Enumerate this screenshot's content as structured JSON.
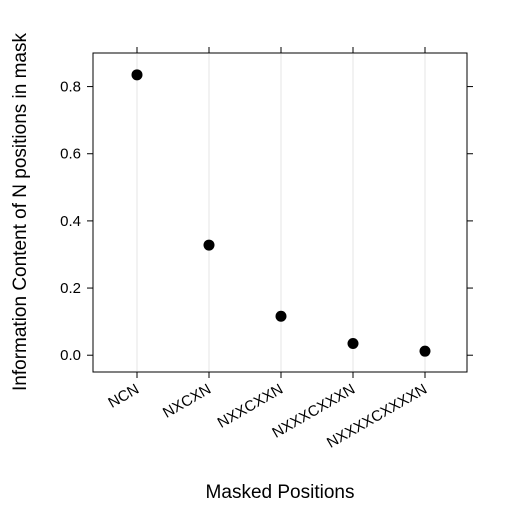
{
  "chart_data": {
    "type": "scatter",
    "title": "",
    "xlabel": "Masked Positions",
    "ylabel": "Information Content of N positions in mask",
    "categories": [
      "NCN",
      "NXCXN",
      "NXXCXXN",
      "NXXXCXXXN",
      "NXXXXCXXXXN"
    ],
    "series": [
      {
        "values": [
          0.835,
          0.328,
          0.116,
          0.035,
          0.012
        ]
      }
    ],
    "ylim": [
      -0.05,
      0.9
    ],
    "yticks": [
      0.0,
      0.2,
      0.4,
      0.6,
      0.8
    ],
    "ytick_labels": [
      "0.0",
      "0.2",
      "0.4",
      "0.6",
      "0.8"
    ],
    "grid": "vertical lines at categories",
    "legend": "none",
    "colors": {
      "point": "#000000",
      "grid": "#e6e6e6",
      "axis": "#000000"
    }
  }
}
